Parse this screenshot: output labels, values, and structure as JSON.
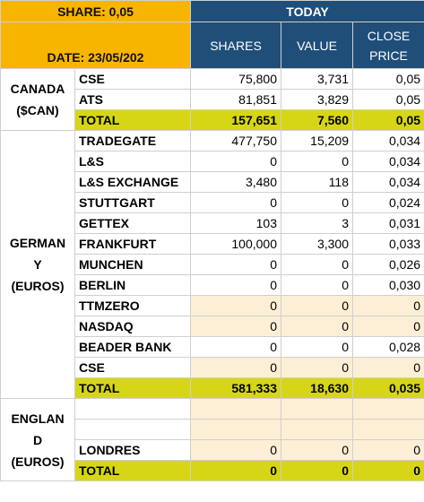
{
  "header": {
    "share": "SHARE: 0,05",
    "date": "DATE: 23/05/202",
    "period": "TODAY",
    "columns": [
      "SHARES",
      "VALUE",
      "CLOSE PRICE"
    ]
  },
  "regions": [
    {
      "label": [
        "CANADA",
        "($CAN)"
      ],
      "rows": [
        {
          "exchange": "CSE",
          "shares": "75,800",
          "value": "3,731",
          "close": "0,05"
        },
        {
          "exchange": "ATS",
          "shares": "81,851",
          "value": "3,829",
          "close": "0,05"
        }
      ],
      "total": {
        "label": "TOTAL",
        "shares": "157,651",
        "value": "7,560",
        "close": "0,05"
      }
    },
    {
      "label": [
        "GERMAN",
        "Y",
        "(EUROS)"
      ],
      "rows": [
        {
          "exchange": "TRADEGATE",
          "shares": "477,750",
          "value": "15,209",
          "close": "0,034"
        },
        {
          "exchange": "L&S",
          "shares": "0",
          "value": "0",
          "close": "0,034"
        },
        {
          "exchange": "L&S  EXCHANGE",
          "shares": "3,480",
          "value": "118",
          "close": "0,034"
        },
        {
          "exchange": "STUTTGART",
          "shares": "0",
          "value": "0",
          "close": "0,024"
        },
        {
          "exchange": "GETTEX",
          "shares": "103",
          "value": "3",
          "close": "0,031"
        },
        {
          "exchange": "FRANKFURT",
          "shares": "100,000",
          "value": "3,300",
          "close": "0,033"
        },
        {
          "exchange": "MUNCHEN",
          "shares": "0",
          "value": "0",
          "close": "0,026"
        },
        {
          "exchange": "BERLIN",
          "shares": "0",
          "value": "0",
          "close": "0,030"
        },
        {
          "exchange": "TTMZERO",
          "shares": "0",
          "value": "0",
          "close": "0",
          "background": "#fdefd6"
        },
        {
          "exchange": "NASDAQ",
          "shares": "0",
          "value": "0",
          "close": "0",
          "background": "#fdefd6"
        },
        {
          "exchange": "BEADER BANK",
          "shares": "0",
          "value": "0",
          "close": "0,028"
        },
        {
          "exchange": "CSE",
          "shares": "0",
          "value": "0",
          "close": "0",
          "background": "#fdefd6"
        }
      ],
      "total": {
        "label": "TOTAL",
        "shares": "581,333",
        "value": "18,630",
        "close": "0,035"
      }
    },
    {
      "label": [
        "ENGLAN",
        "D",
        "(EUROS)"
      ],
      "rows": [
        {
          "background": "#fdefd6"
        },
        {
          "background": "#fdefd6"
        },
        {
          "exchange": "LONDRES",
          "shares": "0",
          "value": "0",
          "close": "0",
          "background": "#fdefd6"
        }
      ],
      "total": {
        "label": "TOTAL",
        "shares": "0",
        "value": "0",
        "close": "0"
      }
    }
  ]
}
